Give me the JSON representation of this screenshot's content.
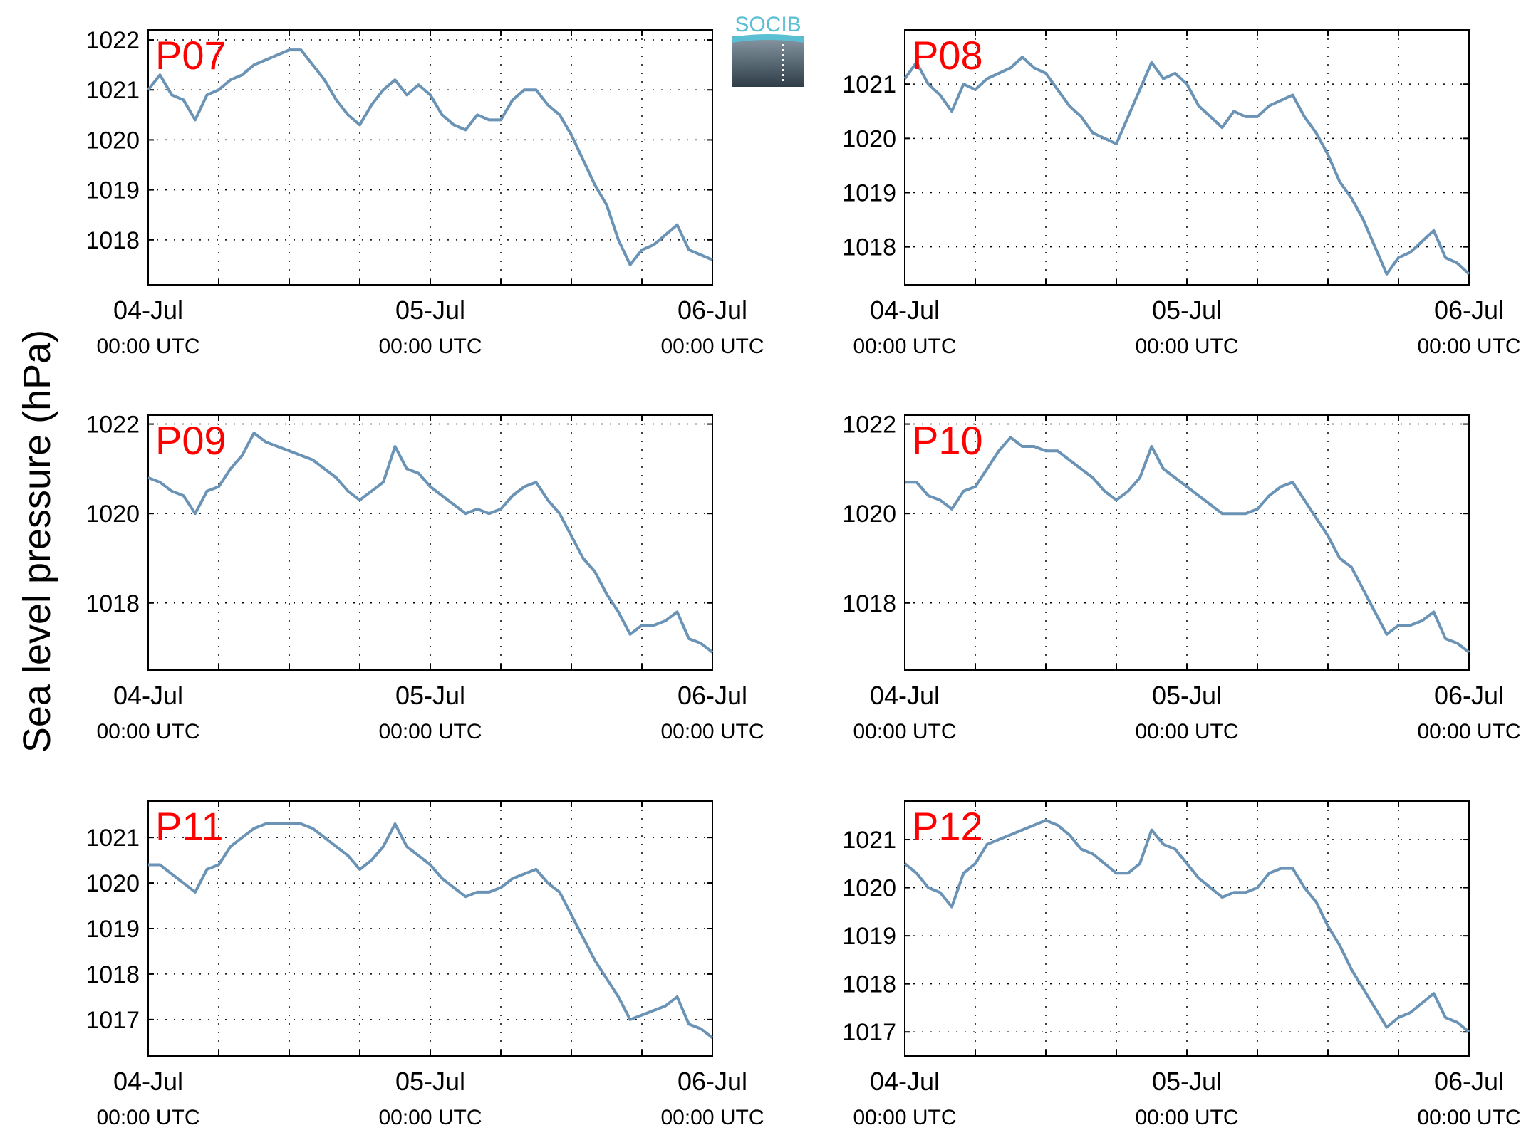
{
  "figure": {
    "ylabel": "Sea level pressure (hPa)",
    "logo_text": "SOCIB",
    "line_color": "#6a93b5",
    "label_color": "#ff0000",
    "grid": true,
    "grid_style": "dotted"
  },
  "chart_data": [
    {
      "type": "line",
      "name": "P07",
      "title": "P07",
      "xlabel": "",
      "ylabel": "Sea level pressure (hPa)",
      "x_tick_labels": [
        {
          "date": "04-Jul",
          "time": "00:00 UTC"
        },
        {
          "date": "05-Jul",
          "time": "00:00 UTC"
        },
        {
          "date": "06-Jul",
          "time": "00:00 UTC"
        }
      ],
      "xlim_hours": [
        0,
        48
      ],
      "ylim": [
        1017.1,
        1022.2
      ],
      "yticks": [
        1018,
        1019,
        1020,
        1021,
        1022
      ],
      "x_hours": [
        0,
        1,
        2,
        3,
        4,
        5,
        6,
        7,
        8,
        9,
        10,
        11,
        12,
        13,
        14,
        15,
        16,
        17,
        18,
        19,
        20,
        21,
        22,
        23,
        24,
        25,
        26,
        27,
        28,
        29,
        30,
        31,
        32,
        33,
        34,
        35,
        36,
        37,
        38,
        39,
        40,
        41,
        42,
        43,
        44,
        45,
        46,
        47,
        48
      ],
      "y": [
        1021.0,
        1021.3,
        1020.9,
        1020.8,
        1020.4,
        1020.9,
        1021.0,
        1021.2,
        1021.3,
        1021.5,
        1021.6,
        1021.7,
        1021.8,
        1021.8,
        1021.5,
        1021.2,
        1020.8,
        1020.5,
        1020.3,
        1020.7,
        1021.0,
        1021.2,
        1020.9,
        1021.1,
        1020.9,
        1020.5,
        1020.3,
        1020.2,
        1020.5,
        1020.4,
        1020.4,
        1020.8,
        1021.0,
        1021.0,
        1020.7,
        1020.5,
        1020.1,
        1019.6,
        1019.1,
        1018.7,
        1018.0,
        1017.5,
        1017.8,
        1017.9,
        1018.1,
        1018.3,
        1017.8,
        1017.7,
        1017.6
      ]
    },
    {
      "type": "line",
      "name": "P08",
      "title": "P08",
      "xlabel": "",
      "ylabel": "Sea level pressure (hPa)",
      "x_tick_labels": [
        {
          "date": "04-Jul",
          "time": "00:00 UTC"
        },
        {
          "date": "05-Jul",
          "time": "00:00 UTC"
        },
        {
          "date": "06-Jul",
          "time": "00:00 UTC"
        }
      ],
      "xlim_hours": [
        0,
        48
      ],
      "ylim": [
        1017.3,
        1022.0
      ],
      "yticks": [
        1018,
        1019,
        1020,
        1021
      ],
      "x_hours": [
        0,
        1,
        2,
        3,
        4,
        5,
        6,
        7,
        8,
        9,
        10,
        11,
        12,
        13,
        14,
        15,
        16,
        17,
        18,
        19,
        20,
        21,
        22,
        23,
        24,
        25,
        26,
        27,
        28,
        29,
        30,
        31,
        32,
        33,
        34,
        35,
        36,
        37,
        38,
        39,
        40,
        41,
        42,
        43,
        44,
        45,
        46,
        47,
        48
      ],
      "y": [
        1021.1,
        1021.4,
        1021.0,
        1020.8,
        1020.5,
        1021.0,
        1020.9,
        1021.1,
        1021.2,
        1021.3,
        1021.5,
        1021.3,
        1021.2,
        1020.9,
        1020.6,
        1020.4,
        1020.1,
        1020.0,
        1019.9,
        1020.4,
        1020.9,
        1021.4,
        1021.1,
        1021.2,
        1021.0,
        1020.6,
        1020.4,
        1020.2,
        1020.5,
        1020.4,
        1020.4,
        1020.6,
        1020.7,
        1020.8,
        1020.4,
        1020.1,
        1019.7,
        1019.2,
        1018.9,
        1018.5,
        1018.0,
        1017.5,
        1017.8,
        1017.9,
        1018.1,
        1018.3,
        1017.8,
        1017.7,
        1017.5
      ]
    },
    {
      "type": "line",
      "name": "P09",
      "title": "P09",
      "xlabel": "",
      "ylabel": "Sea level pressure (hPa)",
      "x_tick_labels": [
        {
          "date": "04-Jul",
          "time": "00:00 UTC"
        },
        {
          "date": "05-Jul",
          "time": "00:00 UTC"
        },
        {
          "date": "06-Jul",
          "time": "00:00 UTC"
        }
      ],
      "xlim_hours": [
        0,
        48
      ],
      "ylim": [
        1016.5,
        1022.2
      ],
      "yticks": [
        1018,
        1020,
        1022
      ],
      "x_hours": [
        0,
        1,
        2,
        3,
        4,
        5,
        6,
        7,
        8,
        9,
        10,
        11,
        12,
        13,
        14,
        15,
        16,
        17,
        18,
        19,
        20,
        21,
        22,
        23,
        24,
        25,
        26,
        27,
        28,
        29,
        30,
        31,
        32,
        33,
        34,
        35,
        36,
        37,
        38,
        39,
        40,
        41,
        42,
        43,
        44,
        45,
        46,
        47,
        48
      ],
      "y": [
        1020.8,
        1020.7,
        1020.5,
        1020.4,
        1020.0,
        1020.5,
        1020.6,
        1021.0,
        1021.3,
        1021.8,
        1021.6,
        1021.5,
        1021.4,
        1021.3,
        1021.2,
        1021.0,
        1020.8,
        1020.5,
        1020.3,
        1020.5,
        1020.7,
        1021.5,
        1021.0,
        1020.9,
        1020.6,
        1020.4,
        1020.2,
        1020.0,
        1020.1,
        1020.0,
        1020.1,
        1020.4,
        1020.6,
        1020.7,
        1020.3,
        1020.0,
        1019.5,
        1019.0,
        1018.7,
        1018.2,
        1017.8,
        1017.3,
        1017.5,
        1017.5,
        1017.6,
        1017.8,
        1017.2,
        1017.1,
        1016.9
      ]
    },
    {
      "type": "line",
      "name": "P10",
      "title": "P10",
      "xlabel": "",
      "ylabel": "Sea level pressure (hPa)",
      "x_tick_labels": [
        {
          "date": "04-Jul",
          "time": "00:00 UTC"
        },
        {
          "date": "05-Jul",
          "time": "00:00 UTC"
        },
        {
          "date": "06-Jul",
          "time": "00:00 UTC"
        }
      ],
      "xlim_hours": [
        0,
        48
      ],
      "ylim": [
        1016.5,
        1022.2
      ],
      "yticks": [
        1018,
        1020,
        1022
      ],
      "x_hours": [
        0,
        1,
        2,
        3,
        4,
        5,
        6,
        7,
        8,
        9,
        10,
        11,
        12,
        13,
        14,
        15,
        16,
        17,
        18,
        19,
        20,
        21,
        22,
        23,
        24,
        25,
        26,
        27,
        28,
        29,
        30,
        31,
        32,
        33,
        34,
        35,
        36,
        37,
        38,
        39,
        40,
        41,
        42,
        43,
        44,
        45,
        46,
        47,
        48
      ],
      "y": [
        1020.7,
        1020.7,
        1020.4,
        1020.3,
        1020.1,
        1020.5,
        1020.6,
        1021.0,
        1021.4,
        1021.7,
        1021.5,
        1021.5,
        1021.4,
        1021.4,
        1021.2,
        1021.0,
        1020.8,
        1020.5,
        1020.3,
        1020.5,
        1020.8,
        1021.5,
        1021.0,
        1020.8,
        1020.6,
        1020.4,
        1020.2,
        1020.0,
        1020.0,
        1020.0,
        1020.1,
        1020.4,
        1020.6,
        1020.7,
        1020.3,
        1019.9,
        1019.5,
        1019.0,
        1018.8,
        1018.3,
        1017.8,
        1017.3,
        1017.5,
        1017.5,
        1017.6,
        1017.8,
        1017.2,
        1017.1,
        1016.9
      ]
    },
    {
      "type": "line",
      "name": "P11",
      "title": "P11",
      "xlabel": "",
      "ylabel": "Sea level pressure (hPa)",
      "x_tick_labels": [
        {
          "date": "04-Jul",
          "time": "00:00 UTC"
        },
        {
          "date": "05-Jul",
          "time": "00:00 UTC"
        },
        {
          "date": "06-Jul",
          "time": "00:00 UTC"
        }
      ],
      "xlim_hours": [
        0,
        48
      ],
      "ylim": [
        1016.2,
        1021.8
      ],
      "yticks": [
        1017,
        1018,
        1019,
        1020,
        1021
      ],
      "x_hours": [
        0,
        1,
        2,
        3,
        4,
        5,
        6,
        7,
        8,
        9,
        10,
        11,
        12,
        13,
        14,
        15,
        16,
        17,
        18,
        19,
        20,
        21,
        22,
        23,
        24,
        25,
        26,
        27,
        28,
        29,
        30,
        31,
        32,
        33,
        34,
        35,
        36,
        37,
        38,
        39,
        40,
        41,
        42,
        43,
        44,
        45,
        46,
        47,
        48
      ],
      "y": [
        1020.4,
        1020.4,
        1020.2,
        1020.0,
        1019.8,
        1020.3,
        1020.4,
        1020.8,
        1021.0,
        1021.2,
        1021.3,
        1021.3,
        1021.3,
        1021.3,
        1021.2,
        1021.0,
        1020.8,
        1020.6,
        1020.3,
        1020.5,
        1020.8,
        1021.3,
        1020.8,
        1020.6,
        1020.4,
        1020.1,
        1019.9,
        1019.7,
        1019.8,
        1019.8,
        1019.9,
        1020.1,
        1020.2,
        1020.3,
        1020.0,
        1019.8,
        1019.3,
        1018.8,
        1018.3,
        1017.9,
        1017.5,
        1017.0,
        1017.1,
        1017.2,
        1017.3,
        1017.5,
        1016.9,
        1016.8,
        1016.6
      ]
    },
    {
      "type": "line",
      "name": "P12",
      "title": "P12",
      "xlabel": "",
      "ylabel": "Sea level pressure (hPa)",
      "x_tick_labels": [
        {
          "date": "04-Jul",
          "time": "00:00 UTC"
        },
        {
          "date": "05-Jul",
          "time": "00:00 UTC"
        },
        {
          "date": "06-Jul",
          "time": "00:00 UTC"
        }
      ],
      "xlim_hours": [
        0,
        48
      ],
      "ylim": [
        1016.5,
        1021.8
      ],
      "yticks": [
        1017,
        1018,
        1019,
        1020,
        1021
      ],
      "x_hours": [
        0,
        1,
        2,
        3,
        4,
        5,
        6,
        7,
        8,
        9,
        10,
        11,
        12,
        13,
        14,
        15,
        16,
        17,
        18,
        19,
        20,
        21,
        22,
        23,
        24,
        25,
        26,
        27,
        28,
        29,
        30,
        31,
        32,
        33,
        34,
        35,
        36,
        37,
        38,
        39,
        40,
        41,
        42,
        43,
        44,
        45,
        46,
        47,
        48
      ],
      "y": [
        1020.5,
        1020.3,
        1020.0,
        1019.9,
        1019.6,
        1020.3,
        1020.5,
        1020.9,
        1021.0,
        1021.1,
        1021.2,
        1021.3,
        1021.4,
        1021.3,
        1021.1,
        1020.8,
        1020.7,
        1020.5,
        1020.3,
        1020.3,
        1020.5,
        1021.2,
        1020.9,
        1020.8,
        1020.5,
        1020.2,
        1020.0,
        1019.8,
        1019.9,
        1019.9,
        1020.0,
        1020.3,
        1020.4,
        1020.4,
        1020.0,
        1019.7,
        1019.2,
        1018.8,
        1018.3,
        1017.9,
        1017.5,
        1017.1,
        1017.3,
        1017.4,
        1017.6,
        1017.8,
        1017.3,
        1017.2,
        1017.0
      ]
    }
  ]
}
